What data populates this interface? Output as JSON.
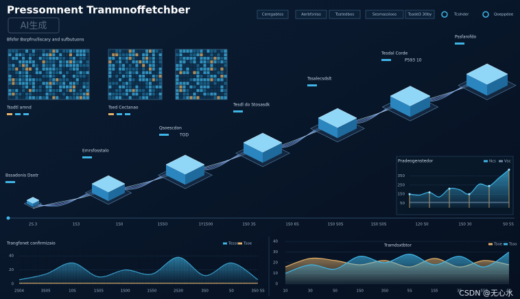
{
  "header": {
    "title": "Pressomnent Tranmnoffetchber",
    "subtitle": "Bfsfor Bsrpfnv/liscary and sufbutuons",
    "nav": [
      "Ceregabtos",
      "Aerbfsnlas",
      "Tsatedbos",
      "Sesmassloos",
      "Tsadd3 30by"
    ],
    "tools": [
      "Tcohder",
      "Qoeppdee"
    ]
  },
  "watermark": "AI生成",
  "credit": "CSDN @无心水",
  "panels": [
    "Tssdtl amnd",
    "Tsed Cectanao"
  ],
  "stack_labels": [
    "Bssadonis Dsotr",
    "Emrsfosstalo",
    "Qsoescdon",
    "TOD",
    "Tesdl do Stosasdk",
    "Tssalecsdslt",
    "Tesdal Corde",
    "P593 10",
    "Pssfarofdo"
  ],
  "timeline": [
    "2S.3",
    "1S3",
    "1S0",
    "1S5O",
    "1Y1500",
    "1S0 3S",
    "1S0 6S",
    "1S0 S0S",
    "1S0 S0S",
    "120 S0",
    "1S0 30",
    "S0 5S"
  ],
  "charts": [
    {
      "type": "line",
      "title": "Pradeogenstedor",
      "series": [
        {
          "name": "Ncs",
          "color": "#3fb6e8",
          "values": [
            150,
            140,
            170,
            120,
            210,
            200,
            150,
            260,
            240,
            330,
            420
          ]
        },
        {
          "name": "Vsc",
          "color": "#6f8aa3",
          "values": [
            60,
            60,
            60,
            60,
            60,
            60,
            60,
            60,
            60,
            60,
            60
          ]
        }
      ],
      "ylim": [
        0,
        400
      ],
      "yticks": [
        50,
        150,
        250,
        350
      ]
    },
    {
      "type": "area",
      "title": "Trangfonet confirmizaio",
      "categories": [
        "2S04",
        "3S05",
        "10S",
        "1S05",
        "1S00",
        "1S50",
        "2S30",
        "3S0",
        "S0",
        "3S0 SS"
      ],
      "series": [
        {
          "name": "Tesse",
          "color": "#3fb6e8",
          "values": [
            6,
            14,
            30,
            10,
            20,
            14,
            38,
            12,
            30,
            6
          ]
        },
        {
          "name": "Tsoe",
          "color": "#e7b36a",
          "values": [
            1,
            1,
            1,
            1,
            1,
            1,
            1,
            1,
            1,
            1
          ]
        }
      ],
      "ylim": [
        0,
        45
      ],
      "yticks": [
        0,
        20,
        40
      ]
    },
    {
      "type": "area",
      "title": "Tramdsxtbtor",
      "categories": [
        "10",
        "30",
        "S0",
        "1S0",
        "3S0",
        "5S",
        "1S5",
        "3S",
        "5S0",
        "S0"
      ],
      "series": [
        {
          "name": "Tsoe",
          "color": "#e7b36a",
          "values": [
            16,
            24,
            22,
            18,
            22,
            16,
            24,
            16,
            22,
            18
          ]
        },
        {
          "name": "Tsso",
          "color": "#3fb6e8",
          "values": [
            10,
            18,
            14,
            26,
            20,
            28,
            18,
            26,
            16,
            30
          ]
        }
      ],
      "ylim": [
        0,
        40
      ],
      "yticks": [
        0,
        10,
        20,
        30,
        40
      ]
    }
  ]
}
